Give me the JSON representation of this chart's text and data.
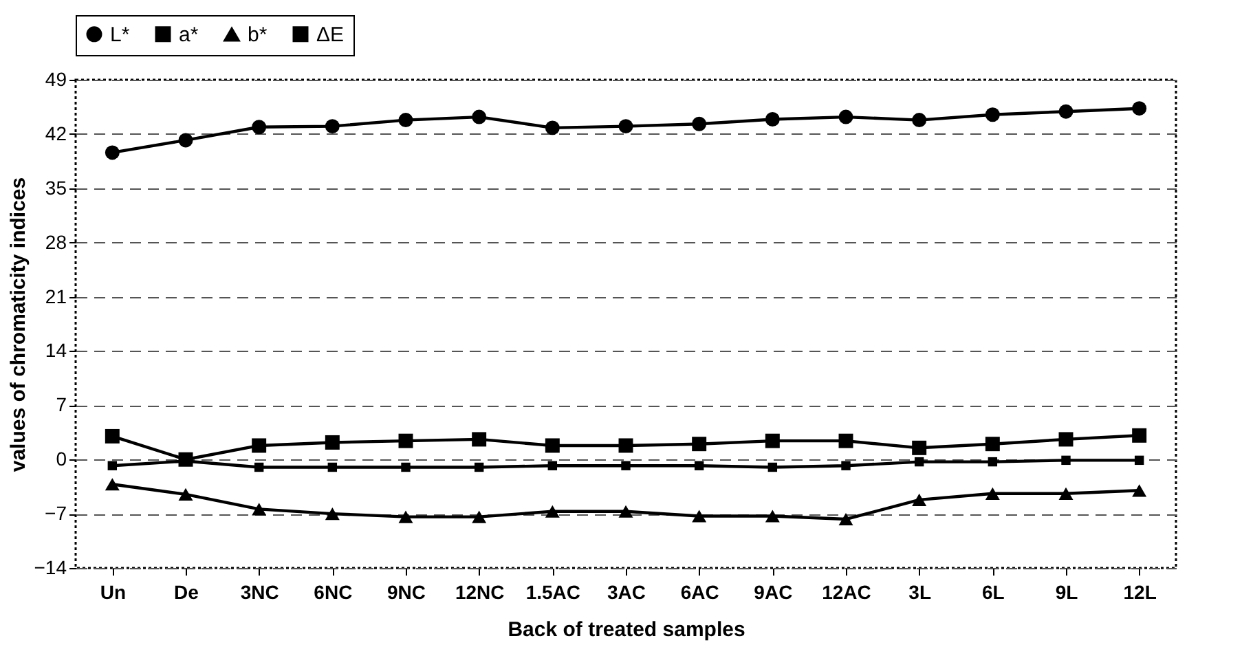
{
  "chart_data": {
    "type": "line",
    "xlabel": "Back of treated samples",
    "ylabel": "values of chromaticity indices",
    "categories": [
      "Un",
      "De",
      "3NC",
      "6NC",
      "9NC",
      "12NC",
      "1.5AC",
      "3AC",
      "6AC",
      "9AC",
      "12AC",
      "3L",
      "6L",
      "9L",
      "12L"
    ],
    "series": [
      {
        "name": "L*",
        "color": "#000000",
        "marker": "circle",
        "values": [
          39.6,
          41.2,
          42.9,
          43.0,
          43.8,
          44.2,
          42.8,
          43.0,
          43.3,
          43.9,
          44.2,
          43.8,
          44.5,
          44.9,
          45.3
        ]
      },
      {
        "name": "a*",
        "color": "#000000",
        "marker": "square",
        "values": [
          -0.8,
          -0.2,
          -1.0,
          -1.0,
          -1.0,
          -1.0,
          -0.8,
          -0.8,
          -0.8,
          -1.0,
          -0.8,
          -0.3,
          -0.3,
          -0.1,
          -0.1
        ]
      },
      {
        "name": "b*",
        "color": "#000000",
        "marker": "triangle",
        "values": [
          -3.2,
          -4.5,
          -6.4,
          -7.0,
          -7.4,
          -7.4,
          -6.7,
          -6.7,
          -7.3,
          -7.3,
          -7.7,
          -5.2,
          -4.4,
          -4.4,
          -4.0
        ]
      },
      {
        "name": "ΔE",
        "color": "#000000",
        "marker": "square",
        "values": [
          3.0,
          0,
          1.8,
          2.2,
          2.4,
          2.6,
          1.8,
          1.8,
          2.0,
          2.4,
          2.4,
          1.5,
          2.0,
          2.6,
          3.1
        ]
      }
    ],
    "ylim": [
      -14,
      49
    ],
    "yticks": [
      -14,
      -7,
      0,
      7,
      14,
      21,
      28,
      35,
      42,
      49
    ],
    "grid": "y",
    "legend": "top",
    "line_style": "solid"
  }
}
